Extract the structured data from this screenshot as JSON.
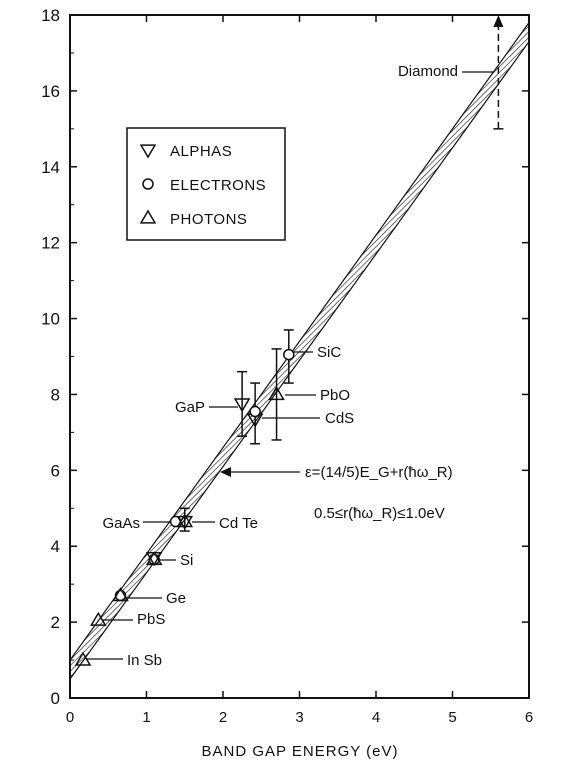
{
  "chart_data": {
    "type": "scatter",
    "title": "",
    "xlabel": "BAND GAP ENERGY (eV)",
    "ylabel": "",
    "xlim": [
      0,
      6
    ],
    "ylim": [
      0,
      18
    ],
    "xticks": [
      "0",
      "1",
      "2",
      "3",
      "4",
      "5",
      "6"
    ],
    "yticks": [
      "0",
      "2",
      "4",
      "6",
      "8",
      "10",
      "12",
      "14",
      "16",
      "18"
    ],
    "grid": false,
    "legend_position": "upper-left",
    "legend": [
      {
        "marker": "down-triangle",
        "label": "ALPHAS"
      },
      {
        "marker": "circle",
        "label": "ELECTRONS"
      },
      {
        "marker": "up-triangle",
        "label": "PHOTONS"
      }
    ],
    "band": {
      "equation": "ε=(14/5)E_G+r(ħω_R)",
      "constraint": "0.5≤r(ħω_R)≤1.0eV",
      "lower": [
        [
          0,
          0.5
        ],
        [
          6,
          17.3
        ]
      ],
      "upper": [
        [
          0,
          1.0
        ],
        [
          6,
          17.8
        ]
      ]
    },
    "points": [
      {
        "label": "InSb",
        "type": "up-triangle",
        "x": 0.17,
        "y": 1.0
      },
      {
        "label": "PbS",
        "type": "up-triangle",
        "x": 0.37,
        "y": 2.05
      },
      {
        "label": "Ge",
        "type": "circle",
        "x": 0.66,
        "y": 2.7
      },
      {
        "label": "Ge",
        "type": "up-triangle",
        "x": 0.66,
        "y": 2.7
      },
      {
        "label": "Si",
        "type": "circle",
        "x": 1.1,
        "y": 3.65
      },
      {
        "label": "Si",
        "type": "down-triangle",
        "x": 1.1,
        "y": 3.7
      },
      {
        "label": "Si",
        "type": "up-triangle",
        "x": 1.1,
        "y": 3.65
      },
      {
        "label": "GaAs",
        "type": "circle",
        "x": 1.38,
        "y": 4.65
      },
      {
        "label": "CdTe",
        "type": "down-triangle",
        "x": 1.5,
        "y": 4.65
      },
      {
        "label": "CdTe",
        "type": "up-triangle",
        "x": 1.5,
        "y": 4.65
      },
      {
        "label": "GaP",
        "type": "down-triangle",
        "x": 2.25,
        "y": 7.75
      },
      {
        "label": "CdS",
        "type": "down-triangle",
        "x": 2.42,
        "y": 7.35
      },
      {
        "label": "CdS",
        "type": "circle",
        "x": 2.42,
        "y": 7.55
      },
      {
        "label": "PbO",
        "type": "up-triangle",
        "x": 2.7,
        "y": 8.0
      },
      {
        "label": "SiC",
        "type": "circle",
        "x": 2.86,
        "y": 9.05
      }
    ],
    "error_bars": [
      {
        "x": 2.25,
        "low": 6.9,
        "high": 8.6,
        "style": "solid"
      },
      {
        "x": 2.42,
        "low": 6.7,
        "high": 8.3,
        "style": "solid"
      },
      {
        "x": 2.7,
        "low": 6.8,
        "high": 9.2,
        "style": "solid"
      },
      {
        "x": 2.86,
        "low": 8.3,
        "high": 9.7,
        "style": "solid"
      },
      {
        "x": 1.5,
        "low": 4.4,
        "high": 5.0,
        "style": "solid"
      },
      {
        "x": 5.6,
        "low": 15.0,
        "high": 18.0,
        "style": "dashed"
      }
    ],
    "annotations": [
      {
        "text": "Diamond",
        "x": 5.6,
        "y": 16.6
      },
      {
        "text": "SiC",
        "x": 2.86,
        "y": 9.05
      },
      {
        "text": "PbO",
        "x": 2.7,
        "y": 8.0
      },
      {
        "text": "GaP",
        "x": 2.25,
        "y": 7.75
      },
      {
        "text": "CdS",
        "x": 2.42,
        "y": 7.35
      },
      {
        "text": "GaAs",
        "x": 1.38,
        "y": 4.65
      },
      {
        "text": "Cd Te",
        "x": 1.5,
        "y": 4.65
      },
      {
        "text": "Si",
        "x": 1.1,
        "y": 3.65
      },
      {
        "text": "Ge",
        "x": 0.66,
        "y": 2.7
      },
      {
        "text": "PbS",
        "x": 0.37,
        "y": 2.05
      },
      {
        "text": "In Sb",
        "x": 0.17,
        "y": 1.0
      }
    ]
  }
}
